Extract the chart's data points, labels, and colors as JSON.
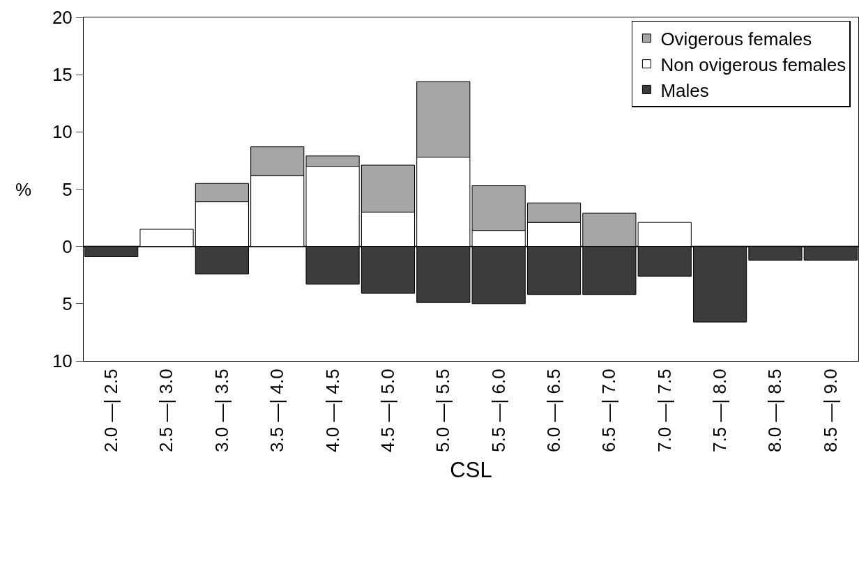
{
  "chart_data": {
    "type": "bar",
    "stacked": true,
    "xlabel": "CSL",
    "ylabel": "%",
    "categories": [
      "2.0 —| 2.5",
      "2.5 —| 3.0",
      "3.0 —| 3.5",
      "3.5 —| 4.0",
      "4.0 —| 4.5",
      "4.5 —| 5.0",
      "5.0 —| 5.5",
      "5.5 —| 6.0",
      "6.0 —| 6.5",
      "6.5 —| 7.0",
      "7.0 —| 7.5",
      "7.5 —| 8.0",
      "8.0 —| 8.5",
      "8.5 —| 9.0"
    ],
    "series": [
      {
        "name": "Non ovigerous females",
        "color": "#ffffff",
        "values": [
          0,
          1.5,
          3.9,
          6.2,
          7.0,
          3.0,
          7.8,
          1.4,
          2.1,
          0,
          2.1,
          0,
          0,
          0
        ]
      },
      {
        "name": "Ovigerous females",
        "color": "#a6a6a6",
        "values": [
          0,
          0,
          1.6,
          2.5,
          0.9,
          4.1,
          6.6,
          3.9,
          1.7,
          2.9,
          0,
          0,
          0,
          0
        ]
      },
      {
        "name": "Males",
        "color": "#3c3c3c",
        "values": [
          -0.9,
          0,
          -2.4,
          0,
          -3.3,
          -4.1,
          -4.9,
          -5.0,
          -4.2,
          -4.2,
          -2.6,
          -6.6,
          -1.2,
          -1.2
        ]
      }
    ],
    "ylim": [
      -10,
      20
    ],
    "yticks": [
      {
        "value": -10,
        "label": "10"
      },
      {
        "value": -5,
        "label": "5"
      },
      0,
      5,
      10,
      15,
      20
    ],
    "ref_lines": [
      {
        "axis": "y",
        "value": 0,
        "color": "#000000"
      }
    ],
    "grid": false,
    "legend": "top right"
  }
}
